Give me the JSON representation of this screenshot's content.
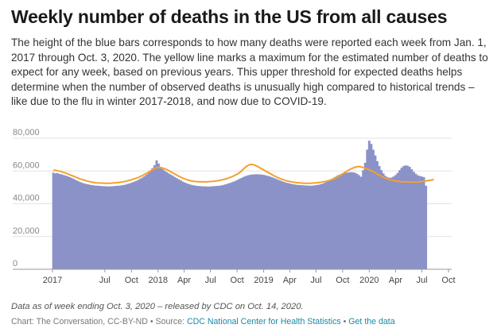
{
  "header": {
    "title": "Weekly number of deaths in the US from all causes",
    "description": "The height of the blue bars corresponds to how many deaths were reported each week from Jan. 1, 2017 through Oct. 3, 2020. The yellow line marks a maximum for the estimated number of deaths to expect for any week, based on previous years. This upper threshold for expected deaths helps determine when the number of observed deaths is unusually high compared to historical trends – like due to the flu in winter 2017-2018, and now due to COVID-19."
  },
  "footer": {
    "note": "Data as of week ending Oct. 3, 2020 – released by CDC on Oct. 14, 2020.",
    "credit_prefix": "Chart: The Conversation, CC-BY-ND • Source: ",
    "source_link": "CDC National Center for Health Statistics",
    "separator": " • ",
    "data_link": "Get the data"
  },
  "chart_data": {
    "type": "bar",
    "x_start": "2017-01-07",
    "x_step_days": 7,
    "ylim": [
      0,
      80000
    ],
    "y_ticks": [
      0,
      20000,
      40000,
      60000,
      80000
    ],
    "y_tick_labels": [
      "0",
      "20,000",
      "40,000",
      "60,000",
      "80,000"
    ],
    "x_tick_labels": [
      "2017",
      "Jul",
      "Oct",
      "2018",
      "Apr",
      "Jul",
      "Oct",
      "2019",
      "Apr",
      "Jul",
      "Oct",
      "2020",
      "Apr",
      "Jul",
      "Oct"
    ],
    "grid": true,
    "colors": {
      "bars": "#8a92c8",
      "threshold": "#f5a02c"
    },
    "series": [
      {
        "values": [
          59000,
          58500,
          58800,
          58200,
          58000,
          57600,
          57200,
          56800,
          56300,
          55800,
          55200,
          54600,
          54000,
          53400,
          52900,
          52500,
          52200,
          51900,
          51600,
          51400,
          51200,
          51100,
          51000,
          50900,
          50800,
          50700,
          50700,
          50600,
          50600,
          50700,
          50800,
          50900,
          51000,
          51100,
          51300,
          51500,
          51800,
          52200,
          52600,
          53000,
          53500,
          54000,
          54600,
          55300,
          56000,
          56800,
          57700,
          58800,
          60000,
          61800,
          63500,
          66500,
          64500,
          62500,
          61200,
          60200,
          59300,
          58500,
          57800,
          57100,
          56300,
          55600,
          54900,
          54200,
          53500,
          52900,
          52400,
          52000,
          51600,
          51300,
          51100,
          50900,
          50800,
          50700,
          50600,
          50600,
          50500,
          50500,
          50600,
          50700,
          50800,
          50900,
          51000,
          51200,
          51500,
          51800,
          52200,
          52600,
          53000,
          53500,
          54000,
          54600,
          55200,
          55800,
          56400,
          56900,
          57300,
          57600,
          57800,
          57900,
          58000,
          58000,
          57900,
          57800,
          57600,
          57300,
          57000,
          56600,
          56200,
          55700,
          55200,
          54700,
          54200,
          53700,
          53300,
          52900,
          52600,
          52300,
          52000,
          51800,
          51600,
          51500,
          51400,
          51300,
          51200,
          51100,
          51100,
          51000,
          51100,
          51200,
          51400,
          51600,
          51900,
          52300,
          52800,
          53400,
          54000,
          54700,
          55500,
          56300,
          57000,
          57600,
          58100,
          58500,
          58800,
          59000,
          59200,
          59300,
          59200,
          58900,
          58300,
          57400,
          56500,
          60500,
          65000,
          73000,
          78500,
          76500,
          73000,
          69500,
          66000,
          63000,
          60500,
          58500,
          57000,
          56200,
          55800,
          56000,
          56600,
          57500,
          58800,
          60500,
          62000,
          63000,
          63400,
          63200,
          62500,
          61000,
          59500,
          58300,
          57400,
          56900,
          56600,
          56200,
          51000
        ]
      },
      {
        "values": [
          60500,
          60400,
          60200,
          59900,
          59600,
          59200,
          58800,
          58300,
          57800,
          57300,
          56800,
          56300,
          55800,
          55300,
          54900,
          54500,
          54100,
          53800,
          53500,
          53200,
          53000,
          52800,
          52700,
          52600,
          52600,
          52500,
          52500,
          52500,
          52500,
          52600,
          52700,
          52800,
          52900,
          53100,
          53300,
          53500,
          53800,
          54100,
          54400,
          54800,
          55200,
          55600,
          56000,
          56600,
          57200,
          57800,
          58500,
          59200,
          60000,
          60800,
          61500,
          62000,
          62200,
          62100,
          61800,
          61400,
          60900,
          60300,
          59600,
          58900,
          58200,
          57500,
          56800,
          56200,
          55600,
          55100,
          54700,
          54300,
          54000,
          53800,
          53600,
          53500,
          53400,
          53400,
          53400,
          53400,
          53400,
          53500,
          53600,
          53700,
          53800,
          54000,
          54200,
          54500,
          54800,
          55100,
          55500,
          55900,
          56400,
          56900,
          57500,
          58200,
          59000,
          60000,
          61200,
          62400,
          63300,
          63900,
          64000,
          63800,
          63300,
          62700,
          62000,
          61300,
          60600,
          59900,
          59200,
          58500,
          57800,
          57100,
          56500,
          55900,
          55400,
          54900,
          54500,
          54100,
          53800,
          53500,
          53300,
          53100,
          52900,
          52800,
          52700,
          52600,
          52500,
          52500,
          52500,
          52500,
          52600,
          52700,
          52800,
          52900,
          53100,
          53300,
          53500,
          53800,
          54100,
          54500,
          54900,
          55400,
          56000,
          56700,
          57500,
          58300,
          59100,
          59900,
          60600,
          61200,
          61800,
          62300,
          62600,
          62700,
          62500,
          62100,
          61700,
          61300,
          60800,
          60200,
          59600,
          58900,
          58200,
          57500,
          56800,
          56200,
          55700,
          55200,
          54800,
          54500,
          54200,
          54000,
          53800,
          53600,
          53500,
          53400,
          53400,
          53400,
          53300,
          53300,
          53300,
          53300,
          53300,
          53400,
          53500,
          53700,
          53900,
          54100,
          54300,
          54500,
          54800
        ]
      }
    ]
  }
}
